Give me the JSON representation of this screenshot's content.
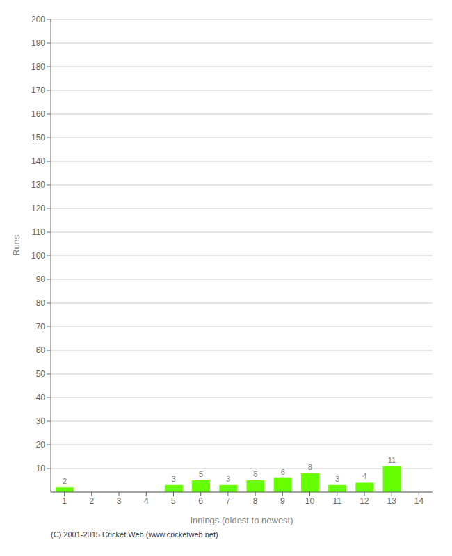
{
  "chart_data": {
    "type": "bar",
    "xlabel": "Innings (oldest to newest)",
    "ylabel": "Runs",
    "categories": [
      "1",
      "2",
      "3",
      "4",
      "5",
      "6",
      "7",
      "8",
      "9",
      "10",
      "11",
      "12",
      "13",
      "14"
    ],
    "values": [
      2,
      0,
      0,
      0,
      3,
      5,
      3,
      5,
      6,
      8,
      3,
      4,
      11,
      0
    ],
    "color": "#66ff00",
    "ylim": [
      0,
      200
    ],
    "yticks": [
      10,
      20,
      30,
      40,
      50,
      60,
      70,
      80,
      90,
      100,
      110,
      120,
      130,
      140,
      150,
      160,
      170,
      180,
      190,
      200
    ],
    "grid": true,
    "data_labels": true,
    "annotations": [
      "(C) 2001-2015 Cricket Web (www.cricketweb.net)"
    ]
  }
}
